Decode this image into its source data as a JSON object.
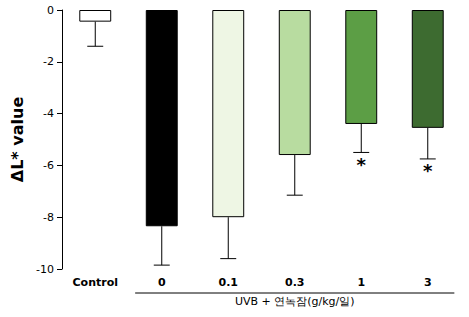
{
  "chart_data": {
    "type": "bar",
    "ylabel": "ΔL* value",
    "xlabel": "UVB + 연녹잠(g/kg/일)",
    "categories": [
      "Control",
      "0",
      "0.1",
      "0.3",
      "1",
      "3"
    ],
    "values": [
      -0.45,
      -8.35,
      -8.0,
      -5.6,
      -4.4,
      -4.55
    ],
    "errors": [
      0.95,
      1.5,
      1.6,
      1.55,
      1.1,
      1.2
    ],
    "colors": [
      "#ffffff",
      "#000000",
      "#eef6e4",
      "#b8dca0",
      "#5c9e45",
      "#3d6b30"
    ],
    "annotations": [
      {
        "category": "1",
        "text": "*"
      },
      {
        "category": "3",
        "text": "*"
      }
    ],
    "ylim": [
      -10,
      0
    ],
    "yticks": [
      -10,
      -8,
      -6,
      -4,
      -2,
      0
    ],
    "grid": false
  }
}
